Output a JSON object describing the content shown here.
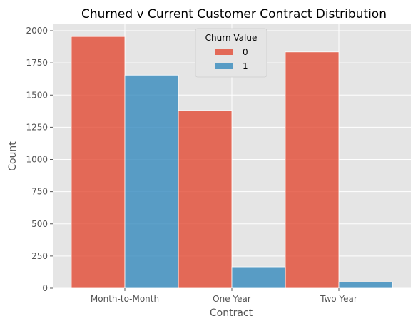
{
  "chart_data": {
    "type": "bar",
    "title": "Churned v Current Customer Contract Distribution",
    "xlabel": "Contract",
    "ylabel": "Count",
    "categories": [
      "Month-to-Month",
      "One Year",
      "Two Year"
    ],
    "series": [
      {
        "name": "0",
        "values": [
          1955,
          1380,
          1835
        ],
        "color": "#E24A33"
      },
      {
        "name": "1",
        "values": [
          1655,
          166,
          48
        ],
        "color": "#348ABD"
      }
    ],
    "ylim": [
      0,
      2050
    ],
    "yticks": [
      0,
      250,
      500,
      750,
      1000,
      1250,
      1500,
      1750,
      2000
    ],
    "grid": true,
    "legend": {
      "title": "Churn Value",
      "placement": "top-center"
    },
    "background": "#E5E5E5"
  }
}
